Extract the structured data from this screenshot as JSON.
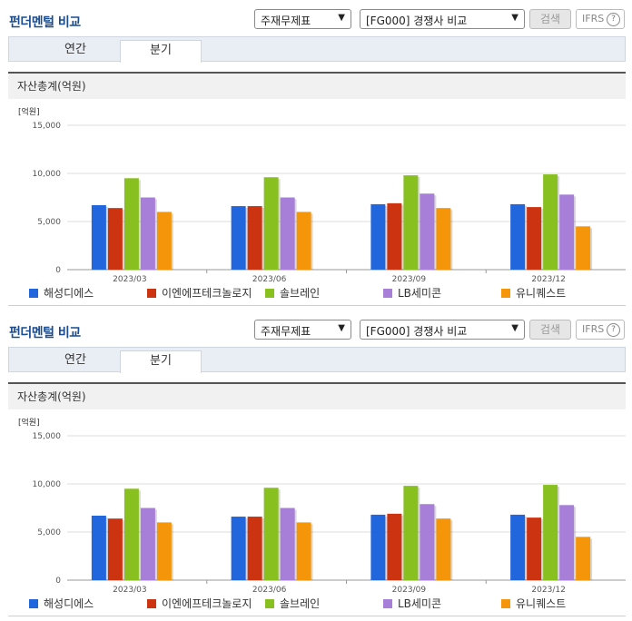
{
  "panels": [
    {
      "title": "펀더멘털 비교",
      "select_metric": "주재무제표",
      "select_compare": "[FG000] 경쟁사 비교",
      "search_label": "검색",
      "ifrs_label": "IFRS",
      "help_glyph": "?",
      "tabs": [
        "연간",
        "분기"
      ],
      "active_tab": "분기",
      "section_title": "자산총계(억원)"
    },
    {
      "title": "펀더멘털 비교",
      "select_metric": "주재무제표",
      "select_compare": "[FG000] 경쟁사 비교",
      "search_label": "검색",
      "ifrs_label": "IFRS",
      "help_glyph": "?",
      "tabs": [
        "연간",
        "분기"
      ],
      "active_tab": "분기",
      "section_title": "자산총계(억원)"
    }
  ],
  "chart_data": {
    "type": "bar",
    "unit_label": "[억원]",
    "categories": [
      "2023/03",
      "2023/06",
      "2023/09",
      "2023/12"
    ],
    "ylim": [
      0,
      15000
    ],
    "yticks": [
      "0",
      "5,000",
      "10,000",
      "15,000"
    ],
    "ytick_values": [
      0,
      5000,
      10000,
      15000
    ],
    "grid": true,
    "legend_position": "bottom",
    "series": [
      {
        "name": "해성디에스",
        "color": "#2266dd",
        "values": [
          6700,
          6600,
          6800,
          6800
        ]
      },
      {
        "name": "이엔에프테크놀로지",
        "color": "#cc3311",
        "values": [
          6400,
          6600,
          6900,
          6500
        ]
      },
      {
        "name": "솔브레인",
        "color": "#88c020",
        "values": [
          9500,
          9600,
          9800,
          9900
        ]
      },
      {
        "name": "LB세미콘",
        "color": "#a77ed8",
        "values": [
          7500,
          7500,
          7900,
          7800
        ]
      },
      {
        "name": "유니퀘스트",
        "color": "#f5960a",
        "values": [
          6000,
          6000,
          6400,
          4500
        ]
      }
    ]
  }
}
